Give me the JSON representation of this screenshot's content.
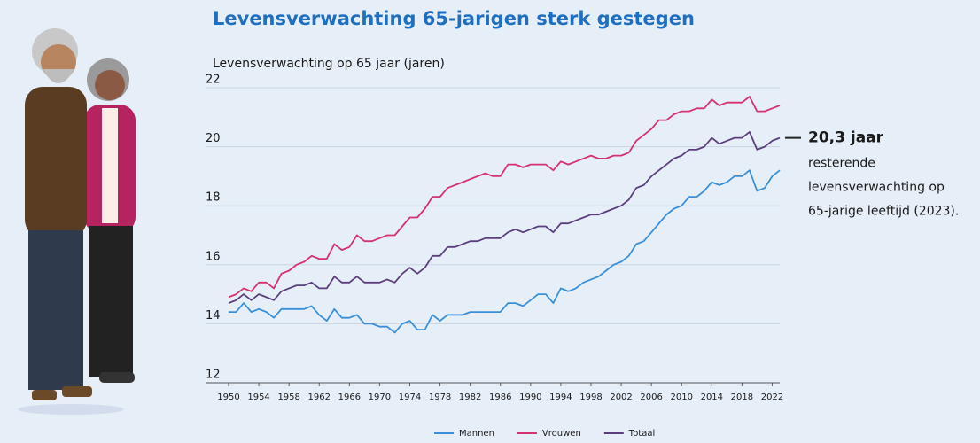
{
  "chart_data": {
    "type": "line",
    "title": "Levensverwachting 65-jarigen sterk gestegen",
    "subtitle": "Levensverwachting op 65 jaar (jaren)",
    "annotation": {
      "headline": "20,3 jaar",
      "lines": [
        "resterende",
        "levensverwachting op",
        "65-jarige leeftijd (2023)."
      ]
    },
    "x": [
      1950,
      1951,
      1952,
      1953,
      1954,
      1955,
      1956,
      1957,
      1958,
      1959,
      1960,
      1961,
      1962,
      1963,
      1964,
      1965,
      1966,
      1967,
      1968,
      1969,
      1970,
      1971,
      1972,
      1973,
      1974,
      1975,
      1976,
      1977,
      1978,
      1979,
      1980,
      1981,
      1982,
      1983,
      1984,
      1985,
      1986,
      1987,
      1988,
      1989,
      1990,
      1991,
      1992,
      1993,
      1994,
      1995,
      1996,
      1997,
      1998,
      1999,
      2000,
      2001,
      2002,
      2003,
      2004,
      2005,
      2006,
      2007,
      2008,
      2009,
      2010,
      2011,
      2012,
      2013,
      2014,
      2015,
      2016,
      2017,
      2018,
      2019,
      2020,
      2021,
      2022,
      2023
    ],
    "series": [
      {
        "name": "Mannen",
        "color": "#3b8fd8",
        "values": [
          14.4,
          14.4,
          14.7,
          14.4,
          14.5,
          14.4,
          14.2,
          14.5,
          14.5,
          14.5,
          14.5,
          14.6,
          14.3,
          14.1,
          14.5,
          14.2,
          14.2,
          14.3,
          14.0,
          14.0,
          13.9,
          13.9,
          13.7,
          14.0,
          14.1,
          13.8,
          13.8,
          14.3,
          14.1,
          14.3,
          14.3,
          14.3,
          14.4,
          14.4,
          14.4,
          14.4,
          14.4,
          14.7,
          14.7,
          14.6,
          14.8,
          15.0,
          15.0,
          14.7,
          15.2,
          15.1,
          15.2,
          15.4,
          15.5,
          15.6,
          15.8,
          16.0,
          16.1,
          16.3,
          16.7,
          16.8,
          17.1,
          17.4,
          17.7,
          17.9,
          18.0,
          18.3,
          18.3,
          18.5,
          18.8,
          18.7,
          18.8,
          19.0,
          19.0,
          19.2,
          18.5,
          18.6,
          19.0,
          19.2
        ]
      },
      {
        "name": "Vrouwen",
        "color": "#d4336f",
        "values": [
          14.9,
          15.0,
          15.2,
          15.1,
          15.4,
          15.4,
          15.2,
          15.7,
          15.8,
          16.0,
          16.1,
          16.3,
          16.2,
          16.2,
          16.7,
          16.5,
          16.6,
          17.0,
          16.8,
          16.8,
          16.9,
          17.0,
          17.0,
          17.3,
          17.6,
          17.6,
          17.9,
          18.3,
          18.3,
          18.6,
          18.7,
          18.8,
          18.9,
          19.0,
          19.1,
          19.0,
          19.0,
          19.4,
          19.4,
          19.3,
          19.4,
          19.4,
          19.4,
          19.2,
          19.5,
          19.4,
          19.5,
          19.6,
          19.7,
          19.6,
          19.6,
          19.7,
          19.7,
          19.8,
          20.2,
          20.4,
          20.6,
          20.9,
          20.9,
          21.1,
          21.2,
          21.2,
          21.3,
          21.3,
          21.6,
          21.4,
          21.5,
          21.5,
          21.5,
          21.7,
          21.2,
          21.2,
          21.3,
          21.4
        ]
      },
      {
        "name": "Totaal",
        "color": "#5b3f7c",
        "values": [
          14.7,
          14.8,
          15.0,
          14.8,
          15.0,
          14.9,
          14.8,
          15.1,
          15.2,
          15.3,
          15.3,
          15.4,
          15.2,
          15.2,
          15.6,
          15.4,
          15.4,
          15.6,
          15.4,
          15.4,
          15.4,
          15.5,
          15.4,
          15.7,
          15.9,
          15.7,
          15.9,
          16.3,
          16.3,
          16.6,
          16.6,
          16.7,
          16.8,
          16.8,
          16.9,
          16.9,
          16.9,
          17.1,
          17.2,
          17.1,
          17.2,
          17.3,
          17.3,
          17.1,
          17.4,
          17.4,
          17.5,
          17.6,
          17.7,
          17.7,
          17.8,
          17.9,
          18.0,
          18.2,
          18.6,
          18.7,
          19.0,
          19.2,
          19.4,
          19.6,
          19.7,
          19.9,
          19.9,
          20.0,
          20.3,
          20.1,
          20.2,
          20.3,
          20.3,
          20.5,
          19.9,
          20.0,
          20.2,
          20.3
        ]
      }
    ],
    "xlim": [
      1950,
      2023
    ],
    "xticks": [
      1950,
      1954,
      1958,
      1962,
      1966,
      1970,
      1974,
      1978,
      1982,
      1986,
      1990,
      1994,
      1998,
      2002,
      2006,
      2010,
      2014,
      2018,
      2022
    ],
    "ylim": [
      12,
      22
    ],
    "yticks": [
      12,
      14,
      16,
      18,
      20,
      22
    ],
    "grid": true
  }
}
